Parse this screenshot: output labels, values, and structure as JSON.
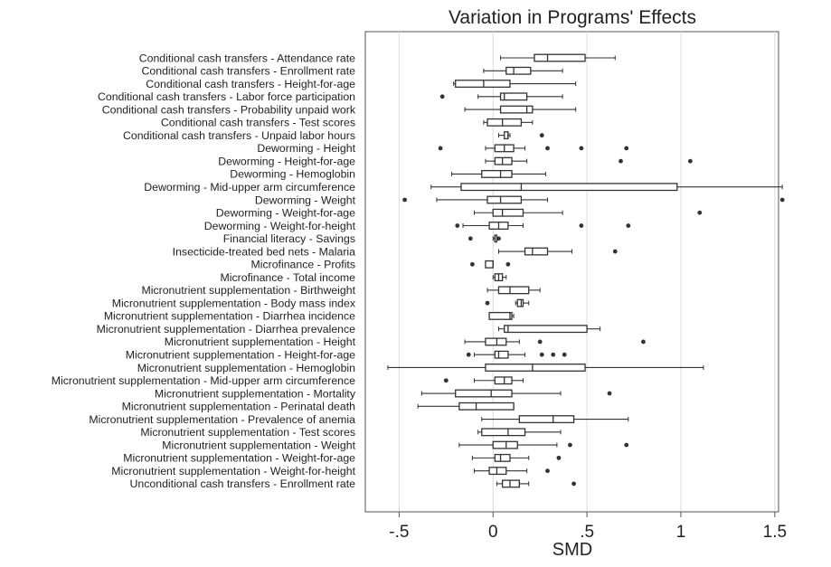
{
  "chart_data": {
    "type": "boxplot",
    "orientation": "horizontal",
    "title": "Variation in Programs' Effects",
    "xlabel": "SMD",
    "ylabel": "",
    "xlim": [
      -0.68,
      1.52
    ],
    "xticks": [
      -0.5,
      0,
      0.5,
      1,
      1.5
    ],
    "xtick_labels": [
      "-.5",
      "0",
      ".5",
      "1",
      "1.5"
    ],
    "grid": true,
    "categories": [
      "Conditional cash transfers - Attendance rate",
      "Conditional cash transfers - Enrollment rate",
      "Conditional cash transfers - Height-for-age",
      "Conditional cash transfers - Labor force participation",
      "Conditional cash transfers - Probability unpaid work",
      "Conditional cash transfers - Test scores",
      "Conditional cash transfers - Unpaid labor hours",
      "Deworming - Height",
      "Deworming - Height-for-age",
      "Deworming - Hemoglobin",
      "Deworming - Mid-upper arm circumference",
      "Deworming - Weight",
      "Deworming - Weight-for-age",
      "Deworming - Weight-for-height",
      "Financial literacy - Savings",
      "Insecticide-treated bed nets - Malaria",
      "Microfinance - Profits",
      "Microfinance - Total income",
      "Micronutrient supplementation - Birthweight",
      "Micronutrient supplementation - Body mass index",
      "Micronutrient supplementation - Diarrhea incidence",
      "Micronutrient supplementation - Diarrhea prevalence",
      "Micronutrient supplementation - Height",
      "Micronutrient supplementation - Height-for-age",
      "Micronutrient supplementation - Hemoglobin",
      "Micronutrient supplementation - Mid-upper arm circumference",
      "Micronutrient supplementation - Mortality",
      "Micronutrient supplementation - Perinatal death",
      "Micronutrient supplementation - Prevalence of anemia",
      "Micronutrient supplementation - Test scores",
      "Micronutrient supplementation - Weight",
      "Micronutrient supplementation - Weight-for-age",
      "Micronutrient supplementation - Weight-for-height",
      "Unconditional cash transfers - Enrollment rate"
    ],
    "boxes": [
      {
        "whisker_low": 0.04,
        "q1": 0.22,
        "median": 0.29,
        "q3": 0.49,
        "whisker_high": 0.65,
        "outliers": []
      },
      {
        "whisker_low": -0.05,
        "q1": 0.07,
        "median": 0.11,
        "q3": 0.2,
        "whisker_high": 0.37,
        "outliers": []
      },
      {
        "whisker_low": -0.21,
        "q1": -0.2,
        "median": -0.05,
        "q3": 0.09,
        "whisker_high": 0.44,
        "outliers": []
      },
      {
        "whisker_low": -0.08,
        "q1": 0.04,
        "median": 0.06,
        "q3": 0.18,
        "whisker_high": 0.37,
        "outliers": [
          -0.27
        ]
      },
      {
        "whisker_low": -0.15,
        "q1": 0.04,
        "median": 0.18,
        "q3": 0.21,
        "whisker_high": 0.44,
        "outliers": []
      },
      {
        "whisker_low": -0.05,
        "q1": -0.03,
        "median": 0.05,
        "q3": 0.15,
        "whisker_high": 0.21,
        "outliers": []
      },
      {
        "whisker_low": 0.03,
        "q1": 0.06,
        "median": 0.08,
        "q3": 0.08,
        "whisker_high": 0.09,
        "outliers": [
          0.26
        ]
      },
      {
        "whisker_low": -0.04,
        "q1": 0.01,
        "median": 0.06,
        "q3": 0.11,
        "whisker_high": 0.17,
        "outliers": [
          -0.28,
          0.29,
          0.47,
          0.71
        ]
      },
      {
        "whisker_low": -0.04,
        "q1": 0.01,
        "median": 0.05,
        "q3": 0.1,
        "whisker_high": 0.18,
        "outliers": [
          0.68,
          1.05
        ]
      },
      {
        "whisker_low": -0.22,
        "q1": -0.06,
        "median": 0.04,
        "q3": 0.1,
        "whisker_high": 0.28,
        "outliers": []
      },
      {
        "whisker_low": -0.33,
        "q1": -0.17,
        "median": 0.15,
        "q3": 0.98,
        "whisker_high": 1.54,
        "outliers": []
      },
      {
        "whisker_low": -0.3,
        "q1": -0.03,
        "median": 0.04,
        "q3": 0.15,
        "whisker_high": 0.29,
        "outliers": [
          -0.47,
          1.54
        ]
      },
      {
        "whisker_low": -0.1,
        "q1": 0.0,
        "median": 0.05,
        "q3": 0.16,
        "whisker_high": 0.37,
        "outliers": [
          1.1
        ]
      },
      {
        "whisker_low": -0.16,
        "q1": -0.02,
        "median": 0.03,
        "q3": 0.08,
        "whisker_high": 0.16,
        "outliers": [
          -0.19,
          0.47,
          0.72
        ]
      },
      {
        "whisker_low": 0.0,
        "q1": 0.01,
        "median": 0.01,
        "q3": 0.02,
        "whisker_high": 0.02,
        "outliers": [
          -0.12,
          0.03
        ]
      },
      {
        "whisker_low": 0.03,
        "q1": 0.17,
        "median": 0.21,
        "q3": 0.29,
        "whisker_high": 0.42,
        "outliers": [
          0.65
        ]
      },
      {
        "whisker_low": -0.04,
        "q1": -0.04,
        "median": 0.0,
        "q3": 0.0,
        "whisker_high": 0.0,
        "outliers": [
          -0.11,
          0.08
        ]
      },
      {
        "whisker_low": 0.0,
        "q1": 0.01,
        "median": 0.03,
        "q3": 0.05,
        "whisker_high": 0.07,
        "outliers": []
      },
      {
        "whisker_low": -0.03,
        "q1": 0.03,
        "median": 0.09,
        "q3": 0.19,
        "whisker_high": 0.25,
        "outliers": []
      },
      {
        "whisker_low": 0.12,
        "q1": 0.13,
        "median": 0.15,
        "q3": 0.16,
        "whisker_high": 0.19,
        "outliers": [
          -0.03
        ]
      },
      {
        "whisker_low": -0.02,
        "q1": -0.02,
        "median": 0.09,
        "q3": 0.1,
        "whisker_high": 0.11,
        "outliers": []
      },
      {
        "whisker_low": 0.03,
        "q1": 0.06,
        "median": 0.08,
        "q3": 0.5,
        "whisker_high": 0.57,
        "outliers": []
      },
      {
        "whisker_low": -0.15,
        "q1": -0.04,
        "median": 0.02,
        "q3": 0.07,
        "whisker_high": 0.14,
        "outliers": [
          0.25,
          0.8
        ]
      },
      {
        "whisker_low": -0.1,
        "q1": 0.01,
        "median": 0.03,
        "q3": 0.08,
        "whisker_high": 0.17,
        "outliers": [
          -0.13,
          0.26,
          0.32,
          0.38
        ]
      },
      {
        "whisker_low": -0.56,
        "q1": -0.04,
        "median": 0.21,
        "q3": 0.49,
        "whisker_high": 1.12,
        "outliers": []
      },
      {
        "whisker_low": -0.1,
        "q1": 0.01,
        "median": 0.06,
        "q3": 0.1,
        "whisker_high": 0.16,
        "outliers": [
          -0.25
        ]
      },
      {
        "whisker_low": -0.38,
        "q1": -0.2,
        "median": -0.01,
        "q3": 0.1,
        "whisker_high": 0.36,
        "outliers": [
          0.62
        ]
      },
      {
        "whisker_low": -0.4,
        "q1": -0.18,
        "median": -0.09,
        "q3": 0.11,
        "whisker_high": 0.11,
        "outliers": []
      },
      {
        "whisker_low": -0.06,
        "q1": 0.14,
        "median": 0.32,
        "q3": 0.43,
        "whisker_high": 0.72,
        "outliers": []
      },
      {
        "whisker_low": -0.08,
        "q1": -0.06,
        "median": 0.08,
        "q3": 0.17,
        "whisker_high": 0.36,
        "outliers": []
      },
      {
        "whisker_low": -0.18,
        "q1": 0.0,
        "median": 0.07,
        "q3": 0.13,
        "whisker_high": 0.34,
        "outliers": [
          0.41,
          0.71
        ]
      },
      {
        "whisker_low": -0.11,
        "q1": 0.01,
        "median": 0.04,
        "q3": 0.09,
        "whisker_high": 0.19,
        "outliers": [
          0.35
        ]
      },
      {
        "whisker_low": -0.1,
        "q1": -0.02,
        "median": 0.02,
        "q3": 0.07,
        "whisker_high": 0.18,
        "outliers": [
          0.29
        ]
      },
      {
        "whisker_low": 0.02,
        "q1": 0.05,
        "median": 0.09,
        "q3": 0.14,
        "whisker_high": 0.19,
        "outliers": [
          0.43
        ]
      }
    ]
  }
}
